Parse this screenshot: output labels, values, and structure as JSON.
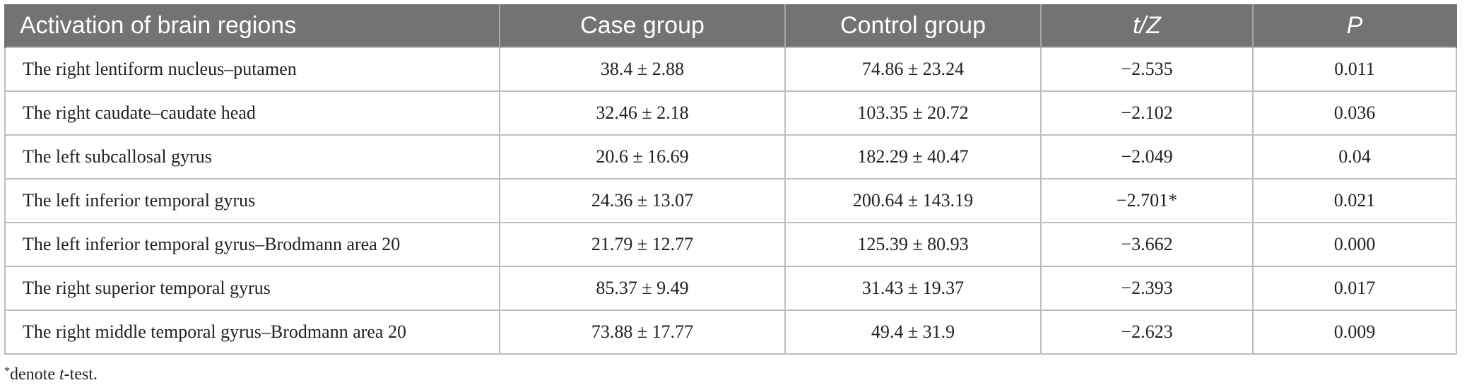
{
  "table": {
    "headers": {
      "region": "Activation of brain regions",
      "case": "Case group",
      "control": "Control group",
      "tz": "t/Z",
      "p": "P"
    },
    "rows": [
      {
        "region": "The right lentiform nucleus–putamen",
        "case": "38.4 ± 2.88",
        "control": "74.86 ± 23.24",
        "tz": "−2.535",
        "p": "0.011"
      },
      {
        "region": "The right caudate–caudate head",
        "case": "32.46 ± 2.18",
        "control": "103.35 ± 20.72",
        "tz": "−2.102",
        "p": "0.036"
      },
      {
        "region": "The left subcallosal gyrus",
        "case": "20.6 ± 16.69",
        "control": "182.29 ± 40.47",
        "tz": "−2.049",
        "p": "0.04"
      },
      {
        "region": "The left inferior temporal gyrus",
        "case": "24.36 ± 13.07",
        "control": "200.64 ± 143.19",
        "tz": "−2.701*",
        "p": "0.021"
      },
      {
        "region": "The left inferior temporal gyrus–Brodmann area 20",
        "case": "21.79 ± 12.77",
        "control": "125.39 ± 80.93",
        "tz": "−3.662",
        "p": "0.000"
      },
      {
        "region": "The right superior temporal gyrus",
        "case": "85.37 ± 9.49",
        "control": "31.43 ± 19.37",
        "tz": "−2.393",
        "p": "0.017"
      },
      {
        "region": "The right middle temporal gyrus–Brodmann area 20",
        "case": "73.88 ± 17.77",
        "control": "49.4 ± 31.9",
        "tz": "−2.623",
        "p": "0.009"
      }
    ]
  },
  "footnote": {
    "marker": "*",
    "prefix": "denote ",
    "term": "t",
    "suffix": "-test."
  }
}
